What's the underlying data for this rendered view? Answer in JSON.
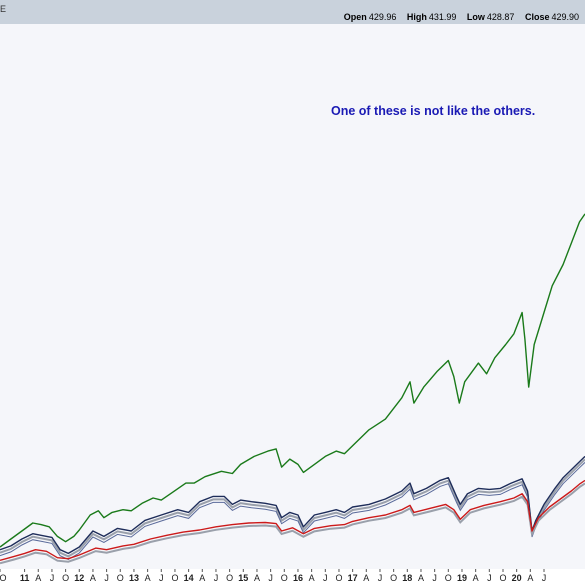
{
  "header": {
    "corner_mark": "E",
    "ohlc": {
      "open_label": "Open",
      "open": "429.96",
      "high_label": "High",
      "high": "431.99",
      "low_label": "Low",
      "low": "428.87",
      "close_label": "Close",
      "close": "429.90"
    }
  },
  "annotation": "One of these is not like the others.",
  "chart_data": {
    "type": "line",
    "title": "",
    "xlabel": "",
    "ylabel": "",
    "xlim": [
      2010.55,
      2021.25
    ],
    "ylim": [
      0,
      1
    ],
    "y_axis_visible": false,
    "grid": false,
    "x_tick_labels": [
      {
        "t": 2010.55,
        "label": "O"
      },
      {
        "t": 2011.0,
        "label": "11"
      },
      {
        "t": 2011.25,
        "label": "A"
      },
      {
        "t": 2011.5,
        "label": "J"
      },
      {
        "t": 2011.75,
        "label": "O"
      },
      {
        "t": 2012.0,
        "label": "12"
      },
      {
        "t": 2012.25,
        "label": "A"
      },
      {
        "t": 2012.5,
        "label": "J"
      },
      {
        "t": 2012.75,
        "label": "O"
      },
      {
        "t": 2013.0,
        "label": "13"
      },
      {
        "t": 2013.25,
        "label": "A"
      },
      {
        "t": 2013.5,
        "label": "J"
      },
      {
        "t": 2013.75,
        "label": "O"
      },
      {
        "t": 2014.0,
        "label": "14"
      },
      {
        "t": 2014.25,
        "label": "A"
      },
      {
        "t": 2014.5,
        "label": "J"
      },
      {
        "t": 2014.75,
        "label": "O"
      },
      {
        "t": 2015.0,
        "label": "15"
      },
      {
        "t": 2015.25,
        "label": "A"
      },
      {
        "t": 2015.5,
        "label": "J"
      },
      {
        "t": 2015.75,
        "label": "O"
      },
      {
        "t": 2016.0,
        "label": "16"
      },
      {
        "t": 2016.25,
        "label": "A"
      },
      {
        "t": 2016.5,
        "label": "J"
      },
      {
        "t": 2016.75,
        "label": "O"
      },
      {
        "t": 2017.0,
        "label": "17"
      },
      {
        "t": 2017.25,
        "label": "A"
      },
      {
        "t": 2017.5,
        "label": "J"
      },
      {
        "t": 2017.75,
        "label": "O"
      },
      {
        "t": 2018.0,
        "label": "18"
      },
      {
        "t": 2018.25,
        "label": "A"
      },
      {
        "t": 2018.5,
        "label": "J"
      },
      {
        "t": 2018.75,
        "label": "O"
      },
      {
        "t": 2019.0,
        "label": "19"
      },
      {
        "t": 2019.25,
        "label": "A"
      },
      {
        "t": 2019.5,
        "label": "J"
      },
      {
        "t": 2019.75,
        "label": "O"
      },
      {
        "t": 2020.0,
        "label": "20"
      },
      {
        "t": 2020.25,
        "label": "A"
      },
      {
        "t": 2020.5,
        "label": "J"
      }
    ],
    "series": [
      {
        "color": "#1a7a1a",
        "points": [
          [
            2010.55,
            0.03
          ],
          [
            2010.75,
            0.045
          ],
          [
            2010.95,
            0.06
          ],
          [
            2011.15,
            0.075
          ],
          [
            2011.3,
            0.072
          ],
          [
            2011.45,
            0.068
          ],
          [
            2011.6,
            0.05
          ],
          [
            2011.75,
            0.04
          ],
          [
            2011.9,
            0.05
          ],
          [
            2012.0,
            0.062
          ],
          [
            2012.2,
            0.09
          ],
          [
            2012.35,
            0.098
          ],
          [
            2012.45,
            0.085
          ],
          [
            2012.6,
            0.095
          ],
          [
            2012.8,
            0.1
          ],
          [
            2012.95,
            0.098
          ],
          [
            2013.15,
            0.112
          ],
          [
            2013.35,
            0.122
          ],
          [
            2013.5,
            0.118
          ],
          [
            2013.7,
            0.132
          ],
          [
            2013.95,
            0.15
          ],
          [
            2014.1,
            0.15
          ],
          [
            2014.3,
            0.162
          ],
          [
            2014.6,
            0.172
          ],
          [
            2014.8,
            0.168
          ],
          [
            2014.95,
            0.185
          ],
          [
            2015.2,
            0.2
          ],
          [
            2015.45,
            0.21
          ],
          [
            2015.6,
            0.214
          ],
          [
            2015.7,
            0.18
          ],
          [
            2015.85,
            0.195
          ],
          [
            2016.0,
            0.185
          ],
          [
            2016.1,
            0.17
          ],
          [
            2016.3,
            0.185
          ],
          [
            2016.5,
            0.2
          ],
          [
            2016.7,
            0.21
          ],
          [
            2016.85,
            0.205
          ],
          [
            2017.0,
            0.22
          ],
          [
            2017.3,
            0.25
          ],
          [
            2017.6,
            0.27
          ],
          [
            2017.9,
            0.31
          ],
          [
            2018.05,
            0.34
          ],
          [
            2018.12,
            0.3
          ],
          [
            2018.3,
            0.33
          ],
          [
            2018.55,
            0.36
          ],
          [
            2018.75,
            0.38
          ],
          [
            2018.85,
            0.35
          ],
          [
            2018.95,
            0.3
          ],
          [
            2019.05,
            0.34
          ],
          [
            2019.3,
            0.375
          ],
          [
            2019.45,
            0.355
          ],
          [
            2019.6,
            0.385
          ],
          [
            2019.8,
            0.41
          ],
          [
            2019.95,
            0.43
          ],
          [
            2020.1,
            0.47
          ],
          [
            2020.15,
            0.42
          ],
          [
            2020.22,
            0.33
          ],
          [
            2020.32,
            0.41
          ],
          [
            2020.5,
            0.47
          ],
          [
            2020.65,
            0.52
          ],
          [
            2020.85,
            0.56
          ],
          [
            2021.0,
            0.6
          ],
          [
            2021.15,
            0.64
          ],
          [
            2021.25,
            0.655
          ]
        ]
      },
      {
        "color": "#1e2d5a",
        "points": [
          [
            2010.55,
            0.025
          ],
          [
            2010.75,
            0.032
          ],
          [
            2010.95,
            0.045
          ],
          [
            2011.15,
            0.055
          ],
          [
            2011.3,
            0.052
          ],
          [
            2011.5,
            0.048
          ],
          [
            2011.65,
            0.025
          ],
          [
            2011.8,
            0.018
          ],
          [
            2012.0,
            0.03
          ],
          [
            2012.25,
            0.06
          ],
          [
            2012.45,
            0.05
          ],
          [
            2012.7,
            0.065
          ],
          [
            2012.95,
            0.06
          ],
          [
            2013.2,
            0.08
          ],
          [
            2013.5,
            0.09
          ],
          [
            2013.8,
            0.1
          ],
          [
            2014.0,
            0.095
          ],
          [
            2014.2,
            0.115
          ],
          [
            2014.45,
            0.125
          ],
          [
            2014.65,
            0.125
          ],
          [
            2014.8,
            0.11
          ],
          [
            2014.95,
            0.118
          ],
          [
            2015.15,
            0.115
          ],
          [
            2015.4,
            0.112
          ],
          [
            2015.6,
            0.108
          ],
          [
            2015.7,
            0.085
          ],
          [
            2015.85,
            0.095
          ],
          [
            2016.0,
            0.09
          ],
          [
            2016.1,
            0.068
          ],
          [
            2016.3,
            0.09
          ],
          [
            2016.5,
            0.095
          ],
          [
            2016.7,
            0.1
          ],
          [
            2016.85,
            0.095
          ],
          [
            2017.0,
            0.105
          ],
          [
            2017.3,
            0.11
          ],
          [
            2017.6,
            0.12
          ],
          [
            2017.9,
            0.135
          ],
          [
            2018.05,
            0.15
          ],
          [
            2018.12,
            0.13
          ],
          [
            2018.35,
            0.14
          ],
          [
            2018.6,
            0.155
          ],
          [
            2018.75,
            0.16
          ],
          [
            2018.9,
            0.125
          ],
          [
            2018.97,
            0.11
          ],
          [
            2019.1,
            0.13
          ],
          [
            2019.3,
            0.14
          ],
          [
            2019.5,
            0.138
          ],
          [
            2019.7,
            0.14
          ],
          [
            2019.9,
            0.15
          ],
          [
            2020.1,
            0.158
          ],
          [
            2020.2,
            0.135
          ],
          [
            2020.28,
            0.06
          ],
          [
            2020.35,
            0.08
          ],
          [
            2020.5,
            0.11
          ],
          [
            2020.7,
            0.14
          ],
          [
            2020.85,
            0.16
          ],
          [
            2021.0,
            0.175
          ],
          [
            2021.15,
            0.19
          ],
          [
            2021.25,
            0.2
          ]
        ]
      },
      {
        "color": "#cc1a1a",
        "points": [
          [
            2010.55,
            0.005
          ],
          [
            2010.8,
            0.012
          ],
          [
            2011.0,
            0.018
          ],
          [
            2011.2,
            0.025
          ],
          [
            2011.4,
            0.022
          ],
          [
            2011.6,
            0.01
          ],
          [
            2011.8,
            0.008
          ],
          [
            2012.0,
            0.015
          ],
          [
            2012.3,
            0.028
          ],
          [
            2012.5,
            0.025
          ],
          [
            2012.8,
            0.032
          ],
          [
            2013.0,
            0.035
          ],
          [
            2013.3,
            0.045
          ],
          [
            2013.6,
            0.052
          ],
          [
            2013.9,
            0.058
          ],
          [
            2014.2,
            0.062
          ],
          [
            2014.5,
            0.068
          ],
          [
            2014.8,
            0.072
          ],
          [
            2015.1,
            0.075
          ],
          [
            2015.4,
            0.076
          ],
          [
            2015.6,
            0.074
          ],
          [
            2015.7,
            0.06
          ],
          [
            2015.9,
            0.066
          ],
          [
            2016.1,
            0.055
          ],
          [
            2016.3,
            0.065
          ],
          [
            2016.6,
            0.07
          ],
          [
            2016.85,
            0.072
          ],
          [
            2017.0,
            0.078
          ],
          [
            2017.3,
            0.085
          ],
          [
            2017.6,
            0.09
          ],
          [
            2017.9,
            0.1
          ],
          [
            2018.05,
            0.108
          ],
          [
            2018.12,
            0.095
          ],
          [
            2018.4,
            0.102
          ],
          [
            2018.7,
            0.11
          ],
          [
            2018.85,
            0.1
          ],
          [
            2018.97,
            0.082
          ],
          [
            2019.15,
            0.1
          ],
          [
            2019.4,
            0.108
          ],
          [
            2019.7,
            0.115
          ],
          [
            2019.95,
            0.122
          ],
          [
            2020.1,
            0.13
          ],
          [
            2020.2,
            0.115
          ],
          [
            2020.28,
            0.06
          ],
          [
            2020.4,
            0.085
          ],
          [
            2020.6,
            0.105
          ],
          [
            2020.8,
            0.12
          ],
          [
            2021.0,
            0.135
          ],
          [
            2021.15,
            0.148
          ],
          [
            2021.25,
            0.155
          ]
        ]
      }
    ]
  }
}
